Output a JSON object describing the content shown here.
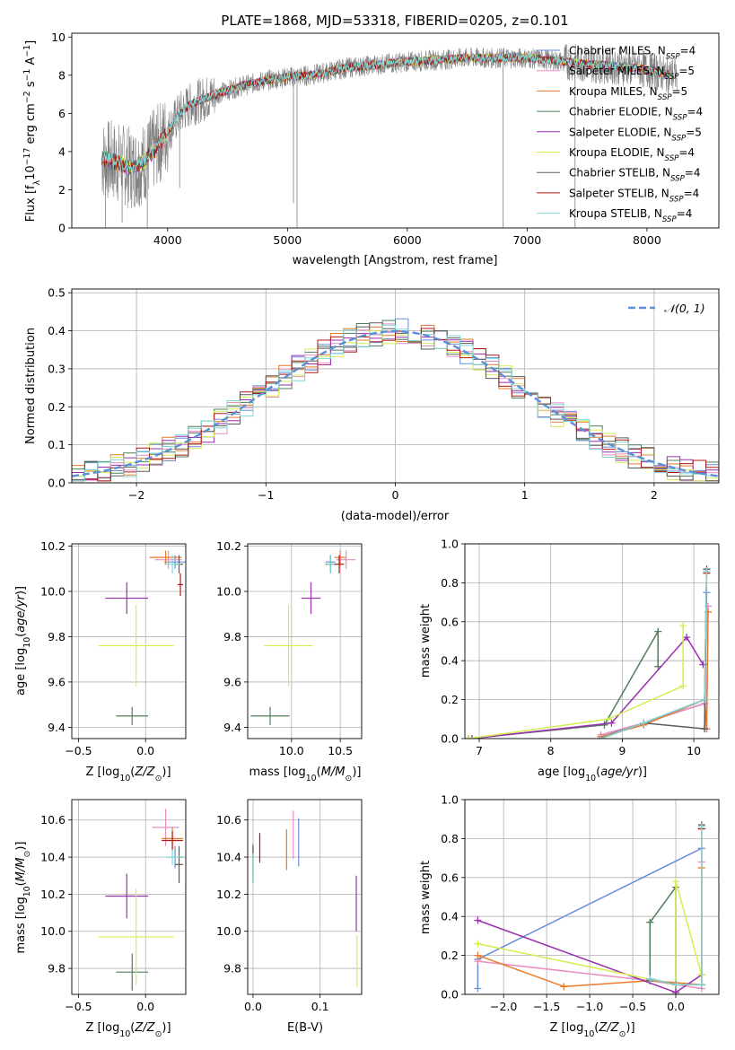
{
  "colors": {
    "Chabrier MILES": "#6a8fd8",
    "Salpeter MILES": "#e88ec0",
    "Kroupa MILES": "#e87a2a",
    "Chabrier ELODIE": "#4f7f5a",
    "Salpeter ELODIE": "#9a2fb0",
    "Kroupa ELODIE": "#d4ee50",
    "Chabrier STELIB": "#5a5a5a",
    "Salpeter STELIB": "#b01818",
    "Kroupa STELIB": "#7ed6d6",
    "normal": "#5b8fd6",
    "grid": "#b0b0b0",
    "spectrum": "#808080"
  },
  "chart_data": [
    {
      "id": "spectrum",
      "type": "line",
      "title": "PLATE=1868, MJD=53318, FIBERID=0205, z=0.101",
      "xlabel": "wavelength [Angstrom, rest frame]",
      "ylabel": "Flux [f_λ 10^-17 erg cm^-2 s^-1 A^-1]",
      "xlim": [
        3200,
        8600
      ],
      "ylim": [
        0,
        10.2
      ],
      "xticks": [
        4000,
        5000,
        6000,
        7000,
        8000
      ],
      "yticks": [
        0,
        2,
        4,
        6,
        8,
        10
      ],
      "grid": false,
      "legend_position": "top-right",
      "legend": [
        {
          "label": "Chabrier MILES, N",
          "sub": "SSP",
          "tail": "=4",
          "key": "Chabrier MILES"
        },
        {
          "label": "Salpeter MILES, N",
          "sub": "SSP",
          "tail": "=5",
          "key": "Salpeter MILES"
        },
        {
          "label": "Kroupa MILES, N",
          "sub": "SSP",
          "tail": "=5",
          "key": "Kroupa MILES"
        },
        {
          "label": "Chabrier ELODIE, N",
          "sub": "SSP",
          "tail": "=4",
          "key": "Chabrier ELODIE"
        },
        {
          "label": "Salpeter ELODIE, N",
          "sub": "SSP",
          "tail": "=5",
          "key": "Salpeter ELODIE"
        },
        {
          "label": "Kroupa ELODIE, N",
          "sub": "SSP",
          "tail": "=4",
          "key": "Kroupa ELODIE"
        },
        {
          "label": "Chabrier STELIB, N",
          "sub": "SSP",
          "tail": "=4",
          "key": "Chabrier STELIB"
        },
        {
          "label": "Salpeter STELIB, N",
          "sub": "SSP",
          "tail": "=4",
          "key": "Salpeter STELIB"
        },
        {
          "label": "Kroupa STELIB, N",
          "sub": "SSP",
          "tail": "=4",
          "key": "Kroupa STELIB"
        }
      ],
      "continuum": [
        [
          3450,
          3.6
        ],
        [
          3600,
          3.4
        ],
        [
          3700,
          3.1
        ],
        [
          3800,
          3.4
        ],
        [
          3900,
          4.2
        ],
        [
          4000,
          5.0
        ],
        [
          4100,
          6.0
        ],
        [
          4200,
          6.5
        ],
        [
          4400,
          7.0
        ],
        [
          4600,
          7.4
        ],
        [
          4800,
          7.7
        ],
        [
          5000,
          7.9
        ],
        [
          5200,
          8.0
        ],
        [
          5500,
          8.4
        ],
        [
          6000,
          8.7
        ],
        [
          6500,
          8.9
        ],
        [
          7000,
          8.9
        ],
        [
          7500,
          8.6
        ],
        [
          7700,
          8.5
        ],
        [
          8000,
          8.3
        ],
        [
          8200,
          8.0
        ]
      ],
      "model_range": [
        3450,
        8200
      ],
      "data_range": [
        3450,
        8250
      ],
      "spikes": [
        [
          3480,
          0
        ],
        [
          3620,
          0.3
        ],
        [
          3760,
          1.2
        ],
        [
          3830,
          0
        ],
        [
          4100,
          2.1
        ],
        [
          5050,
          1.3
        ],
        [
          5080,
          0
        ],
        [
          6800,
          0
        ],
        [
          7400,
          0
        ]
      ]
    },
    {
      "id": "residuals",
      "type": "line",
      "xlabel": "(data-model)/error",
      "ylabel": "Normed distribution",
      "xlim": [
        -2.5,
        2.5
      ],
      "ylim": [
        0,
        0.51
      ],
      "xticks": [
        -2,
        -1,
        0,
        1,
        2
      ],
      "xtick_labels": [
        "−2",
        "−1",
        "0",
        "1",
        "2"
      ],
      "yticks": [
        0,
        0.1,
        0.2,
        0.3,
        0.4,
        0.5
      ],
      "ytick_labels": [
        "0.0",
        "0.1",
        "0.2",
        "0.3",
        "0.4",
        "0.5"
      ],
      "grid": true,
      "legend_position": "top-right",
      "legend_label": "𝒩(0, 1)",
      "bin_width": 0.1
    },
    {
      "id": "age-vs-Z",
      "type": "scatter",
      "xlabel": "Z [log10(Z/Z☉)]",
      "ylabel": "age  [log10(age/yr)]",
      "xlim": [
        -0.55,
        0.3
      ],
      "ylim": [
        9.35,
        10.21
      ],
      "xticks": [
        -0.5,
        0.0
      ],
      "xtick_labels": [
        "−0.5",
        "0.0"
      ],
      "yticks": [
        9.4,
        9.6,
        9.8,
        10.0,
        10.2
      ],
      "ytick_labels": [
        "9.4",
        "9.6",
        "9.8",
        "10.0",
        "10.2"
      ],
      "grid": true,
      "points": [
        {
          "series": "Chabrier MILES",
          "x": 0.22,
          "y": 10.13,
          "xerr": 0.08,
          "yerr": 0.03
        },
        {
          "series": "Salpeter MILES",
          "x": 0.17,
          "y": 10.14,
          "xerr": 0.1,
          "yerr": 0.04
        },
        {
          "series": "Kroupa MILES",
          "x": 0.15,
          "y": 10.15,
          "xerr": 0.12,
          "yerr": 0.03
        },
        {
          "series": "Chabrier ELODIE",
          "x": -0.1,
          "y": 9.45,
          "xerr": 0.12,
          "yerr": 0.04
        },
        {
          "series": "Salpeter ELODIE",
          "x": -0.14,
          "y": 9.97,
          "xerr": 0.16,
          "yerr": 0.07
        },
        {
          "series": "Kroupa ELODIE",
          "x": -0.07,
          "y": 9.76,
          "xerr": 0.28,
          "yerr": 0.18
        },
        {
          "series": "Chabrier STELIB",
          "x": 0.25,
          "y": 10.12,
          "xerr": 0.03,
          "yerr": 0.04
        },
        {
          "series": "Salpeter STELIB",
          "x": 0.26,
          "y": 10.03,
          "xerr": 0.02,
          "yerr": 0.05
        },
        {
          "series": "Kroupa STELIB",
          "x": 0.2,
          "y": 10.12,
          "xerr": 0.06,
          "yerr": 0.04
        }
      ]
    },
    {
      "id": "age-vs-mass",
      "type": "scatter",
      "xlabel": "mass [log10(M/M☉)]",
      "ylabel": "",
      "xlim": [
        9.55,
        10.72
      ],
      "ylim": [
        9.35,
        10.21
      ],
      "xticks": [
        10.0,
        10.5
      ],
      "xtick_labels": [
        "10.0",
        "10.5"
      ],
      "yticks": [
        9.4,
        9.6,
        9.8,
        10.0,
        10.2
      ],
      "ytick_labels": [
        "9.4",
        "9.6",
        "9.8",
        "10.0",
        "10.2"
      ],
      "grid": true,
      "points": [
        {
          "series": "Chabrier MILES",
          "x": 10.4,
          "y": 10.13,
          "xerr": 0.05,
          "yerr": 0.03
        },
        {
          "series": "Salpeter MILES",
          "x": 10.56,
          "y": 10.14,
          "xerr": 0.1,
          "yerr": 0.04
        },
        {
          "series": "Kroupa MILES",
          "x": 10.5,
          "y": 10.15,
          "xerr": 0.06,
          "yerr": 0.03
        },
        {
          "series": "Chabrier ELODIE",
          "x": 9.78,
          "y": 9.45,
          "xerr": 0.2,
          "yerr": 0.04
        },
        {
          "series": "Salpeter ELODIE",
          "x": 10.2,
          "y": 9.97,
          "xerr": 0.1,
          "yerr": 0.07
        },
        {
          "series": "Kroupa ELODIE",
          "x": 9.97,
          "y": 9.76,
          "xerr": 0.25,
          "yerr": 0.18
        },
        {
          "series": "Chabrier STELIB",
          "x": 10.4,
          "y": 10.12,
          "xerr": 0.05,
          "yerr": 0.04
        },
        {
          "series": "Salpeter STELIB",
          "x": 10.49,
          "y": 10.12,
          "xerr": 0.05,
          "yerr": 0.04
        },
        {
          "series": "Kroupa STELIB",
          "x": 10.4,
          "y": 10.12,
          "xerr": 0.04,
          "yerr": 0.04
        }
      ]
    },
    {
      "id": "weight-vs-age",
      "type": "line",
      "xlabel": "age  [log10(age/yr)]",
      "ylabel": "mass weight",
      "xlim": [
        6.8,
        10.35
      ],
      "ylim": [
        0,
        1.0
      ],
      "xticks": [
        7,
        8,
        9,
        10
      ],
      "yticks": [
        0,
        0.2,
        0.4,
        0.6,
        0.8,
        1.0
      ],
      "ytick_labels": [
        "0.0",
        "0.2",
        "0.4",
        "0.6",
        "0.8",
        "1.0"
      ],
      "grid": true,
      "series": [
        {
          "name": "Chabrier MILES",
          "x": [
            8.7,
            9.3,
            10.15,
            10.18
          ],
          "y": [
            0.01,
            0.08,
            0.18,
            0.75
          ]
        },
        {
          "name": "Salpeter MILES",
          "x": [
            8.7,
            9.3,
            10.15,
            10.18,
            10.2
          ],
          "y": [
            0.02,
            0.08,
            0.18,
            0.05,
            0.68
          ]
        },
        {
          "name": "Kroupa MILES",
          "x": [
            8.7,
            9.3,
            10.15,
            10.18,
            10.2
          ],
          "y": [
            0.01,
            0.07,
            0.2,
            0.05,
            0.65
          ]
        },
        {
          "name": "Chabrier ELODIE",
          "x": [
            6.85,
            8.75,
            9.5,
            9.5
          ],
          "y": [
            0.0,
            0.07,
            0.55,
            0.37
          ]
        },
        {
          "name": "Salpeter ELODIE",
          "x": [
            6.9,
            8.85,
            9.9,
            10.13
          ],
          "y": [
            0.0,
            0.08,
            0.52,
            0.38
          ]
        },
        {
          "name": "Kroupa ELODIE",
          "x": [
            6.85,
            8.8,
            9.85,
            9.85
          ],
          "y": [
            0.0,
            0.1,
            0.27,
            0.58
          ]
        },
        {
          "name": "Chabrier STELIB",
          "x": [
            8.7,
            9.3,
            10.15,
            10.18
          ],
          "y": [
            0.0,
            0.08,
            0.05,
            0.87
          ]
        },
        {
          "name": "Salpeter STELIB",
          "x": [
            8.7,
            9.3,
            10.15,
            10.18
          ],
          "y": [
            0.0,
            0.08,
            0.2,
            0.85
          ]
        },
        {
          "name": "Kroupa STELIB",
          "x": [
            8.7,
            9.3,
            10.15,
            10.18
          ],
          "y": [
            0.0,
            0.08,
            0.2,
            0.86
          ]
        }
      ]
    },
    {
      "id": "mass-vs-Z",
      "type": "scatter",
      "xlabel": "Z [log10(Z/Z☉)]",
      "ylabel": "mass [log10(M/M☉)]",
      "xlim": [
        -0.55,
        0.3
      ],
      "ylim": [
        9.66,
        10.71
      ],
      "xticks": [
        -0.5,
        0.0
      ],
      "xtick_labels": [
        "−0.5",
        "0.0"
      ],
      "yticks": [
        9.8,
        10.0,
        10.2,
        10.4,
        10.6
      ],
      "ytick_labels": [
        "9.8",
        "10.0",
        "10.2",
        "10.4",
        "10.6"
      ],
      "grid": true,
      "points": [
        {
          "series": "Chabrier MILES",
          "x": 0.22,
          "y": 10.4,
          "xerr": 0.06,
          "yerr": 0.06
        },
        {
          "series": "Salpeter MILES",
          "x": 0.15,
          "y": 10.56,
          "xerr": 0.1,
          "yerr": 0.1
        },
        {
          "series": "Kroupa MILES",
          "x": 0.2,
          "y": 10.5,
          "xerr": 0.08,
          "yerr": 0.06
        },
        {
          "series": "Chabrier ELODIE",
          "x": -0.1,
          "y": 9.78,
          "xerr": 0.12,
          "yerr": 0.1
        },
        {
          "series": "Salpeter ELODIE",
          "x": -0.14,
          "y": 10.19,
          "xerr": 0.16,
          "yerr": 0.12
        },
        {
          "series": "Kroupa ELODIE",
          "x": -0.07,
          "y": 9.97,
          "xerr": 0.28,
          "yerr": 0.26
        },
        {
          "series": "Chabrier STELIB",
          "x": 0.25,
          "y": 10.36,
          "xerr": 0.03,
          "yerr": 0.1
        },
        {
          "series": "Salpeter STELIB",
          "x": 0.2,
          "y": 10.49,
          "xerr": 0.08,
          "yerr": 0.05
        },
        {
          "series": "Kroupa STELIB",
          "x": 0.2,
          "y": 10.4,
          "xerr": 0.06,
          "yerr": 0.04
        }
      ]
    },
    {
      "id": "mass-vs-EBV",
      "type": "scatter",
      "xlabel": "E(B-V)",
      "ylabel": "",
      "xlim": [
        -0.008,
        0.162
      ],
      "ylim": [
        9.66,
        10.71
      ],
      "xticks": [
        0.0,
        0.1
      ],
      "xtick_labels": [
        "0.0",
        "0.1"
      ],
      "yticks": [
        9.8,
        10.0,
        10.2,
        10.4,
        10.6
      ],
      "ytick_labels": [
        "9.8",
        "10.0",
        "10.2",
        "10.4",
        "10.6"
      ],
      "grid": true,
      "points": [
        {
          "series": "Chabrier MILES",
          "x": 0.068,
          "y": 10.48,
          "xerr": 0,
          "yerr": 0.13
        },
        {
          "series": "Salpeter MILES",
          "x": 0.06,
          "y": 10.52,
          "xerr": 0,
          "yerr": 0.13
        },
        {
          "series": "Kroupa MILES",
          "x": 0.05,
          "y": 10.44,
          "xerr": 0,
          "yerr": 0.11
        },
        {
          "series": "Chabrier ELODIE",
          "x": 0.0,
          "y": 10.37,
          "xerr": 0,
          "yerr": 0.1
        },
        {
          "series": "Salpeter ELODIE",
          "x": 0.154,
          "y": 10.15,
          "xerr": 0,
          "yerr": 0.15
        },
        {
          "series": "Kroupa ELODIE",
          "x": 0.155,
          "y": 9.84,
          "xerr": 0,
          "yerr": 0.14
        },
        {
          "series": "Chabrier STELIB",
          "x": 0.0,
          "y": 10.36,
          "xerr": 0,
          "yerr": 0.1
        },
        {
          "series": "Salpeter STELIB",
          "x": 0.01,
          "y": 10.45,
          "xerr": 0,
          "yerr": 0.08
        },
        {
          "series": "Kroupa STELIB",
          "x": 0.0,
          "y": 10.34,
          "xerr": 0,
          "yerr": 0.08
        }
      ]
    },
    {
      "id": "weight-vs-Z",
      "type": "line",
      "xlabel": "Z [log10(Z/Z☉)]",
      "ylabel": "mass weight",
      "xlim": [
        -2.45,
        0.5
      ],
      "ylim": [
        0,
        1.0
      ],
      "xticks": [
        -2.0,
        -1.5,
        -1.0,
        -0.5,
        0.0
      ],
      "xtick_labels": [
        "−2.0",
        "−1.5",
        "−1.0",
        "−0.5",
        "0.0"
      ],
      "yticks": [
        0,
        0.2,
        0.4,
        0.6,
        0.8,
        1.0
      ],
      "ytick_labels": [
        "0.0",
        "0.2",
        "0.4",
        "0.6",
        "0.8",
        "1.0"
      ],
      "grid": true,
      "series": [
        {
          "name": "Chabrier MILES",
          "x": [
            -2.3,
            -2.3,
            0.3,
            0.3
          ],
          "y": [
            0.03,
            0.18,
            0.75,
            0.05
          ]
        },
        {
          "name": "Salpeter MILES",
          "x": [
            -2.3,
            -0.3,
            0.3,
            0.3
          ],
          "y": [
            0.17,
            0.07,
            0.03,
            0.68
          ]
        },
        {
          "name": "Kroupa MILES",
          "x": [
            -2.3,
            -1.3,
            -0.3,
            0.3,
            0.3
          ],
          "y": [
            0.2,
            0.04,
            0.07,
            0.05,
            0.65
          ]
        },
        {
          "name": "Chabrier ELODIE",
          "x": [
            -0.3,
            -0.3,
            0.0,
            0.0
          ],
          "y": [
            0.07,
            0.37,
            0.55,
            0.0
          ]
        },
        {
          "name": "Salpeter ELODIE",
          "x": [
            -2.3,
            0.0,
            0.3
          ],
          "y": [
            0.38,
            0.01,
            0.1
          ]
        },
        {
          "name": "Kroupa ELODIE",
          "x": [
            -2.3,
            0.0,
            0.0,
            0.3
          ],
          "y": [
            0.26,
            0.05,
            0.58,
            0.1
          ]
        },
        {
          "name": "Chabrier STELIB",
          "x": [
            -0.3,
            0.0,
            0.3,
            0.3
          ],
          "y": [
            0.08,
            0.05,
            0.05,
            0.87
          ]
        },
        {
          "name": "Salpeter STELIB",
          "x": [
            -0.3,
            0.0,
            0.3,
            0.3
          ],
          "y": [
            0.08,
            0.05,
            0.05,
            0.85
          ]
        },
        {
          "name": "Kroupa STELIB",
          "x": [
            -0.3,
            0.0,
            0.3,
            0.3
          ],
          "y": [
            0.08,
            0.05,
            0.05,
            0.86
          ]
        }
      ]
    }
  ]
}
